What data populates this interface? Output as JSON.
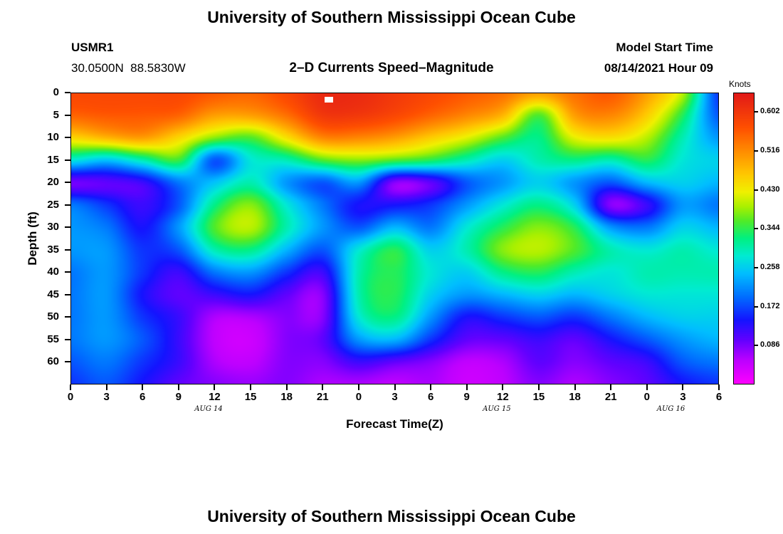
{
  "page": {
    "title_top": "University of Southern Mississippi Ocean Cube",
    "title_bottom": "University of Southern Mississippi Ocean Cube"
  },
  "header": {
    "station": "USMR1",
    "coordinates": "30.0500N  88.5830W",
    "subtitle": "2–D Currents Speed–Magnitude",
    "model_start_label": "Model Start Time",
    "model_start_value": "08/14/2021 Hour 09"
  },
  "chart_data": {
    "type": "heatmap",
    "title": "2-D Currents Speed-Magnitude",
    "xlabel": "Forecast Time(Z)",
    "ylabel": "Depth (ft)",
    "colorbar_label": "Knots",
    "colorbar_ticks": [
      0.602,
      0.516,
      0.43,
      0.344,
      0.258,
      0.172,
      0.086
    ],
    "value_range": [
      0,
      0.645
    ],
    "x_range_hours": [
      0,
      54
    ],
    "depth_range_ft": [
      0,
      65
    ],
    "x_hours": [
      0,
      3,
      6,
      9,
      12,
      15,
      18,
      21,
      24,
      27,
      30,
      33,
      36,
      39,
      42,
      45,
      48,
      51,
      54
    ],
    "x_tick_labels": [
      "0",
      "3",
      "6",
      "9",
      "12",
      "15",
      "18",
      "21",
      "0",
      "3",
      "6",
      "9",
      "12",
      "15",
      "18",
      "21",
      "0",
      "3",
      "6"
    ],
    "date_labels": [
      {
        "label": "AUG 14",
        "hour": 11.5
      },
      {
        "label": "AUG 15",
        "hour": 35.5
      },
      {
        "label": "AUG 16",
        "hour": 50
      }
    ],
    "depths_ft": [
      0,
      5,
      10,
      15,
      20,
      25,
      30,
      35,
      40,
      45,
      50,
      55,
      60,
      65
    ],
    "y_tick_labels": [
      "0",
      "5",
      "10",
      "15",
      "20",
      "25",
      "30",
      "35",
      "40",
      "45",
      "50",
      "55",
      "60"
    ],
    "values_knots": [
      [
        0.58,
        0.58,
        0.58,
        0.58,
        0.56,
        0.55,
        0.58,
        0.62,
        0.62,
        0.6,
        0.58,
        0.56,
        0.54,
        0.5,
        0.54,
        0.56,
        0.5,
        0.4,
        0.16
      ],
      [
        0.55,
        0.56,
        0.56,
        0.55,
        0.5,
        0.5,
        0.54,
        0.6,
        0.6,
        0.58,
        0.55,
        0.52,
        0.48,
        0.36,
        0.5,
        0.52,
        0.46,
        0.34,
        0.18
      ],
      [
        0.45,
        0.48,
        0.5,
        0.45,
        0.38,
        0.36,
        0.44,
        0.52,
        0.52,
        0.5,
        0.46,
        0.42,
        0.36,
        0.32,
        0.42,
        0.44,
        0.4,
        0.3,
        0.22
      ],
      [
        0.28,
        0.25,
        0.3,
        0.35,
        0.18,
        0.28,
        0.3,
        0.36,
        0.38,
        0.36,
        0.34,
        0.3,
        0.26,
        0.3,
        0.32,
        0.3,
        0.34,
        0.28,
        0.26
      ],
      [
        0.09,
        0.1,
        0.12,
        0.2,
        0.25,
        0.3,
        0.22,
        0.18,
        0.22,
        0.08,
        0.1,
        0.18,
        0.22,
        0.26,
        0.22,
        0.18,
        0.24,
        0.26,
        0.24
      ],
      [
        0.2,
        0.16,
        0.12,
        0.18,
        0.32,
        0.38,
        0.28,
        0.2,
        0.14,
        0.14,
        0.16,
        0.22,
        0.28,
        0.32,
        0.26,
        0.08,
        0.12,
        0.22,
        0.2
      ],
      [
        0.22,
        0.2,
        0.14,
        0.22,
        0.36,
        0.4,
        0.3,
        0.22,
        0.18,
        0.24,
        0.2,
        0.28,
        0.34,
        0.38,
        0.34,
        0.22,
        0.2,
        0.26,
        0.24
      ],
      [
        0.22,
        0.22,
        0.16,
        0.18,
        0.3,
        0.32,
        0.24,
        0.18,
        0.28,
        0.34,
        0.26,
        0.3,
        0.38,
        0.4,
        0.36,
        0.3,
        0.28,
        0.3,
        0.28
      ],
      [
        0.2,
        0.22,
        0.16,
        0.12,
        0.2,
        0.22,
        0.16,
        0.12,
        0.3,
        0.34,
        0.28,
        0.26,
        0.32,
        0.34,
        0.3,
        0.28,
        0.3,
        0.3,
        0.3
      ],
      [
        0.2,
        0.22,
        0.14,
        0.1,
        0.12,
        0.14,
        0.1,
        0.08,
        0.3,
        0.34,
        0.26,
        0.22,
        0.24,
        0.26,
        0.24,
        0.26,
        0.28,
        0.28,
        0.28
      ],
      [
        0.2,
        0.22,
        0.16,
        0.12,
        0.06,
        0.06,
        0.08,
        0.08,
        0.28,
        0.32,
        0.22,
        0.14,
        0.16,
        0.18,
        0.16,
        0.2,
        0.24,
        0.26,
        0.26
      ],
      [
        0.2,
        0.22,
        0.18,
        0.12,
        0.05,
        0.04,
        0.08,
        0.1,
        0.22,
        0.24,
        0.16,
        0.1,
        0.1,
        0.12,
        0.1,
        0.14,
        0.18,
        0.22,
        0.24
      ],
      [
        0.18,
        0.2,
        0.16,
        0.12,
        0.06,
        0.05,
        0.08,
        0.08,
        0.12,
        0.1,
        0.08,
        0.05,
        0.06,
        0.1,
        0.08,
        0.1,
        0.12,
        0.18,
        0.2
      ],
      [
        0.16,
        0.18,
        0.14,
        0.1,
        0.08,
        0.07,
        0.08,
        0.06,
        0.06,
        0.05,
        0.06,
        0.04,
        0.05,
        0.08,
        0.06,
        0.08,
        0.1,
        0.14,
        0.16
      ]
    ],
    "colormap": [
      {
        "t": 0.0,
        "color": "#ff00ff"
      },
      {
        "t": 0.08,
        "color": "#be00ff"
      },
      {
        "t": 0.15,
        "color": "#6400ff"
      },
      {
        "t": 0.22,
        "color": "#1414ff"
      },
      {
        "t": 0.3,
        "color": "#006eff"
      },
      {
        "t": 0.38,
        "color": "#00beff"
      },
      {
        "t": 0.44,
        "color": "#00ebd2"
      },
      {
        "t": 0.5,
        "color": "#00f082"
      },
      {
        "t": 0.56,
        "color": "#50eb28"
      },
      {
        "t": 0.61,
        "color": "#aaf000"
      },
      {
        "t": 0.66,
        "color": "#f0f000"
      },
      {
        "t": 0.72,
        "color": "#ffc800"
      },
      {
        "t": 0.8,
        "color": "#ff8c00"
      },
      {
        "t": 0.88,
        "color": "#ff5000"
      },
      {
        "t": 1.0,
        "color": "#e11919"
      }
    ],
    "grid": false,
    "legend_position": "right-colorbar"
  }
}
